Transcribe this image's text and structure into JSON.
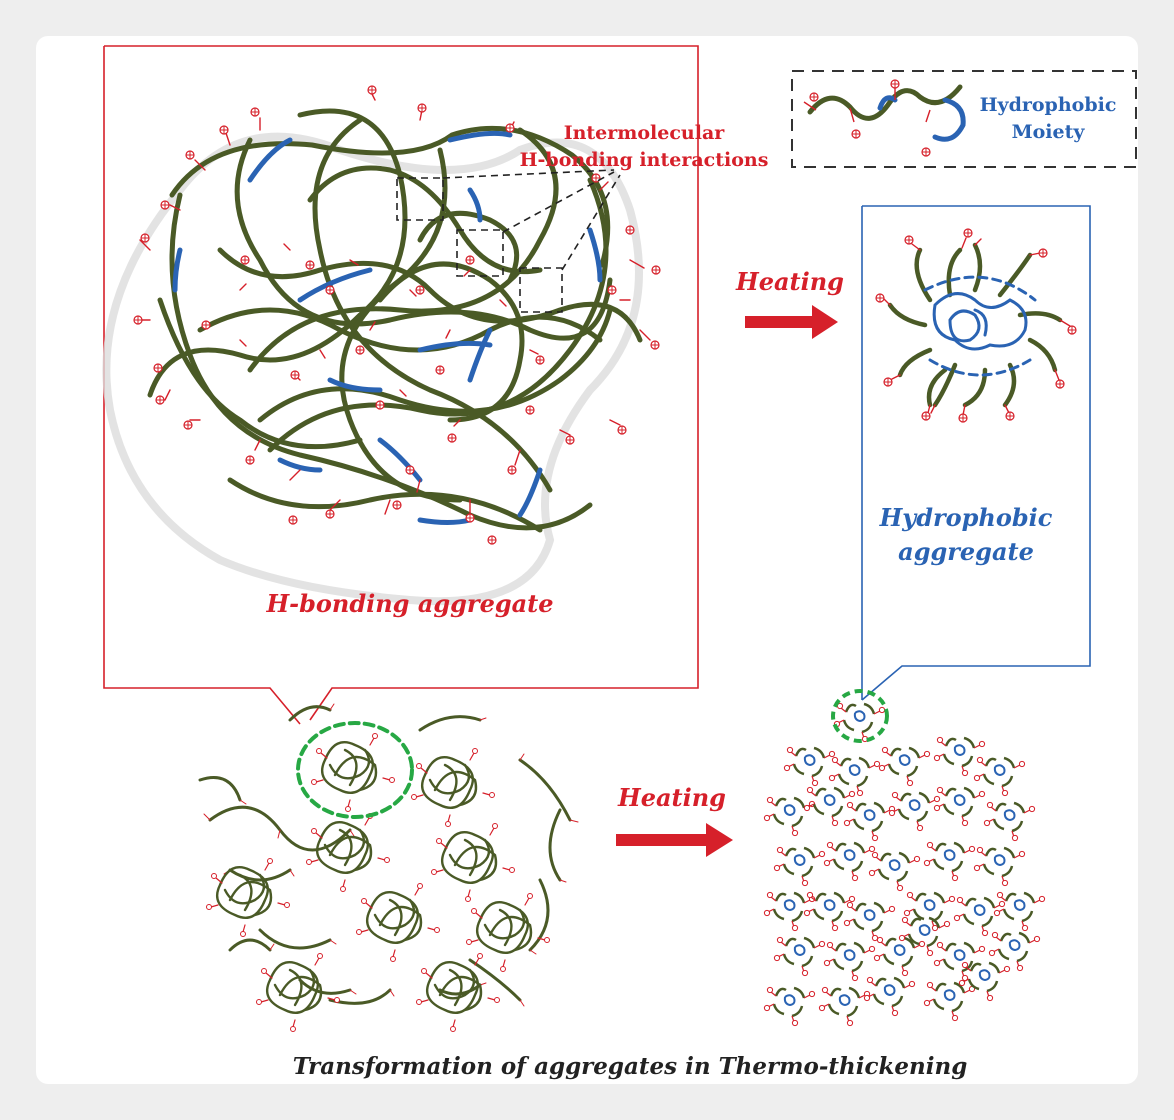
{
  "labels": {
    "intermolecular_line1": "Intermolecular",
    "intermolecular_line2": "H-bonding interactions",
    "legend_line1": "Hydrophobic",
    "legend_line2": "Moiety",
    "heating_top": "Heating",
    "heating_bottom": "Heating",
    "hydrophobic_aggregate_line1": "Hydrophobic",
    "hydrophobic_aggregate_line2": "aggregate",
    "hbonding_aggregate": "H-bonding aggregate",
    "caption": "Transformation of aggregates in Thermo-thickening"
  },
  "colors": {
    "chain": "#4a5a26",
    "hydrophobic": "#2a63b3",
    "side_chain": "#d6202a",
    "red_frame": "#d6202a",
    "blue_frame": "#2a63b3",
    "highlight": "#27a844"
  },
  "icons": {
    "charge": "oplus-charge-icon",
    "arrow": "heating-arrow-icon"
  }
}
